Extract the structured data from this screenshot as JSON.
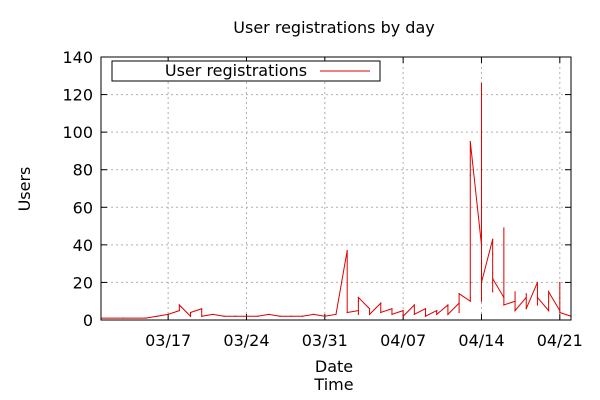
{
  "chart_data": {
    "type": "line",
    "title": "User registrations by day",
    "xlabel": "Date\nTime",
    "ylabel": "Users",
    "ylim": [
      0,
      140
    ],
    "yticks": [
      0,
      20,
      40,
      60,
      80,
      100,
      120,
      140
    ],
    "xlim": [
      "2013-03-11",
      "2013-04-22"
    ],
    "xticks": [
      {
        "date": "2013-03-17",
        "label": "03/17"
      },
      {
        "date": "2013-03-24",
        "label": "03/24"
      },
      {
        "date": "2013-03-31",
        "label": "03/31"
      },
      {
        "date": "2013-04-07",
        "label": "04/07"
      },
      {
        "date": "2013-04-14",
        "label": "04/14"
      },
      {
        "date": "2013-04-21",
        "label": "04/21"
      }
    ],
    "grid": true,
    "legend_position": "top-left",
    "colors": {
      "series": "#dd0000",
      "grid": "#b0b0b0",
      "axes": "#000000"
    },
    "series": [
      {
        "name": "User registrations",
        "x": [
          "2013-03-11",
          "2013-03-13",
          "2013-03-15",
          "2013-03-16",
          "2013-03-17",
          "2013-03-18",
          "2013-03-18",
          "2013-03-19",
          "2013-03-19",
          "2013-03-20",
          "2013-03-20",
          "2013-03-21",
          "2013-03-22",
          "2013-03-23",
          "2013-03-24",
          "2013-03-25",
          "2013-03-26",
          "2013-03-27",
          "2013-03-28",
          "2013-03-29",
          "2013-03-30",
          "2013-03-31",
          "2013-04-01",
          "2013-04-02",
          "2013-04-02",
          "2013-04-03",
          "2013-04-03",
          "2013-04-03",
          "2013-04-03",
          "2013-04-04",
          "2013-04-04",
          "2013-04-05",
          "2013-04-05",
          "2013-04-06",
          "2013-04-06",
          "2013-04-07",
          "2013-04-07",
          "2013-04-08",
          "2013-04-08",
          "2013-04-09",
          "2013-04-09",
          "2013-04-10",
          "2013-04-10",
          "2013-04-11",
          "2013-04-11",
          "2013-04-12",
          "2013-04-12",
          "2013-04-12",
          "2013-04-13",
          "2013-04-13",
          "2013-04-13",
          "2013-04-13",
          "2013-04-13",
          "2013-04-14",
          "2013-04-14",
          "2013-04-14",
          "2013-04-14",
          "2013-04-14",
          "2013-04-14",
          "2013-04-14",
          "2013-04-14",
          "2013-04-14",
          "2013-04-15",
          "2013-04-15",
          "2013-04-15",
          "2013-04-15",
          "2013-04-15",
          "2013-04-16",
          "2013-04-16",
          "2013-04-16",
          "2013-04-17",
          "2013-04-17",
          "2013-04-17",
          "2013-04-18",
          "2013-04-18",
          "2013-04-18",
          "2013-04-19",
          "2013-04-19",
          "2013-04-19",
          "2013-04-20",
          "2013-04-20",
          "2013-04-20",
          "2013-04-21",
          "2013-04-21",
          "2013-04-21",
          "2013-04-21",
          "2013-04-22"
        ],
        "values": [
          1,
          1,
          1,
          2,
          3,
          5,
          8,
          2,
          4,
          6,
          2,
          3,
          2,
          2,
          2,
          2,
          3,
          2,
          2,
          2,
          3,
          2,
          3,
          37,
          4,
          5,
          10,
          3,
          12,
          6,
          3,
          9,
          4,
          6,
          3,
          5,
          2,
          8,
          3,
          6,
          2,
          5,
          3,
          8,
          3,
          9,
          4,
          14,
          10,
          20,
          77,
          12,
          95,
          40,
          70,
          126,
          50,
          80,
          97,
          30,
          10,
          20,
          43,
          25,
          35,
          15,
          22,
          12,
          49,
          8,
          10,
          15,
          5,
          12,
          14,
          6,
          20,
          8,
          12,
          5,
          10,
          15,
          5,
          12,
          20,
          4,
          2
        ]
      }
    ]
  }
}
